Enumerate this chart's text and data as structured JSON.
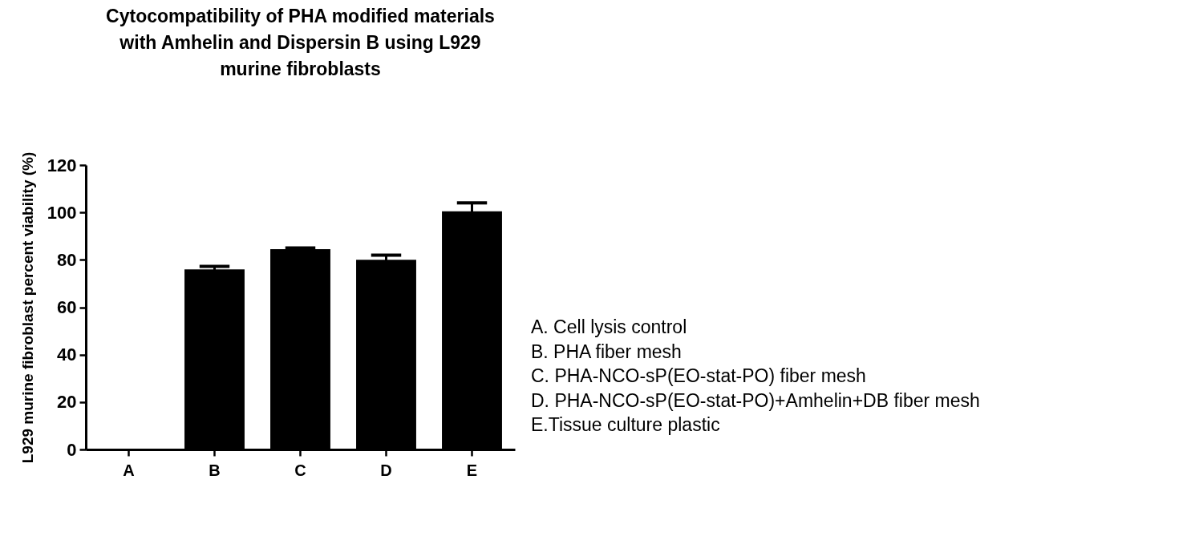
{
  "chart_data": {
    "type": "bar",
    "title": "Cytocompatibility of PHA modified materials with Amhelin and Dispersin B using L929 murine fibroblasts",
    "ylabel": "L929 murine fibroblast percent viability (%)",
    "categories": [
      "A",
      "B",
      "C",
      "D",
      "E"
    ],
    "values": [
      0,
      76,
      84.5,
      80,
      100.5
    ],
    "errors": [
      null,
      1.2,
      0.5,
      2,
      3.5
    ],
    "color": "#000000",
    "ylim": [
      0,
      120
    ],
    "yticks": [
      0,
      20,
      40,
      60,
      80,
      100,
      120
    ],
    "grid": false,
    "annotations": [
      "A. Cell lysis control",
      "B. PHA fiber mesh",
      "C. PHA-NCO-sP(EO-stat-PO) fiber mesh",
      "D. PHA-NCO-sP(EO-stat-PO)+Amhelin+DB fiber mesh",
      "E.Tissue culture plastic"
    ]
  }
}
